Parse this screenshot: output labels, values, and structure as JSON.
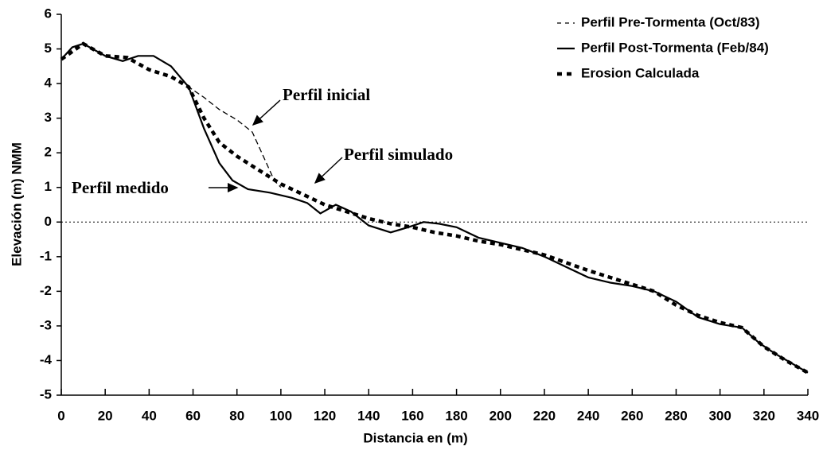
{
  "chart_data": {
    "type": "line",
    "xlabel": "Distancia en (m)",
    "ylabel": "Elevación (m) NMM",
    "xlim": [
      0,
      340
    ],
    "xticks": [
      0,
      20,
      40,
      60,
      80,
      100,
      120,
      140,
      160,
      180,
      200,
      220,
      240,
      260,
      280,
      300,
      320,
      340
    ],
    "ylim": [
      -5,
      6
    ],
    "yticks": [
      -5,
      -4,
      -3,
      -2,
      -1,
      0,
      1,
      2,
      3,
      4,
      5,
      6
    ],
    "reference_line": 0,
    "grid": false,
    "legend": "upper right",
    "series": [
      {
        "name": "Perfil Pre-Tormenta (Oct/83)",
        "color": "#000000",
        "style": "dashed",
        "x": [
          0,
          5,
          10,
          20,
          28,
          35,
          42,
          50,
          58,
          65,
          72,
          80,
          87,
          92,
          97,
          100
        ],
        "values": [
          4.7,
          5.05,
          5.15,
          4.8,
          4.65,
          4.8,
          4.8,
          4.5,
          3.9,
          3.6,
          3.25,
          2.95,
          2.6,
          1.9,
          1.2,
          1.0
        ]
      },
      {
        "name": "Perfil Post-Tormenta (Feb/84)",
        "color": "#000000",
        "style": "solid",
        "x": [
          0,
          5,
          10,
          20,
          28,
          35,
          42,
          50,
          58,
          65,
          72,
          78,
          85,
          95,
          105,
          112,
          118,
          125,
          132,
          140,
          150,
          158,
          165,
          172,
          180,
          190,
          200,
          210,
          220,
          230,
          240,
          250,
          260,
          270,
          280,
          290,
          300,
          310,
          318,
          325,
          340
        ],
        "values": [
          4.7,
          5.05,
          5.15,
          4.8,
          4.65,
          4.8,
          4.8,
          4.5,
          3.9,
          2.7,
          1.7,
          1.2,
          0.95,
          0.85,
          0.7,
          0.55,
          0.25,
          0.5,
          0.3,
          -0.1,
          -0.3,
          -0.15,
          0.0,
          -0.05,
          -0.15,
          -0.45,
          -0.6,
          -0.75,
          -1.0,
          -1.3,
          -1.6,
          -1.75,
          -1.85,
          -2.0,
          -2.3,
          -2.75,
          -2.95,
          -3.05,
          -3.5,
          -3.8,
          -4.35
        ]
      },
      {
        "name": "Erosion Calculada",
        "color": "#000000",
        "style": "dotted",
        "x": [
          0,
          10,
          20,
          30,
          40,
          50,
          58,
          65,
          72,
          80,
          90,
          100,
          110,
          120,
          130,
          140,
          150,
          160,
          170,
          180,
          190,
          200,
          220,
          240,
          260,
          270,
          280,
          290,
          300,
          310,
          320,
          330,
          340
        ],
        "values": [
          4.7,
          5.15,
          4.8,
          4.75,
          4.4,
          4.2,
          3.9,
          3.0,
          2.3,
          1.9,
          1.5,
          1.1,
          0.8,
          0.5,
          0.3,
          0.1,
          -0.05,
          -0.15,
          -0.3,
          -0.4,
          -0.55,
          -0.65,
          -0.95,
          -1.4,
          -1.8,
          -2.0,
          -2.4,
          -2.7,
          -2.9,
          -3.05,
          -3.6,
          -4.0,
          -4.35
        ]
      }
    ],
    "annotations": [
      "Perfil inicial",
      "Perfil simulado",
      "Perfil medido"
    ]
  }
}
